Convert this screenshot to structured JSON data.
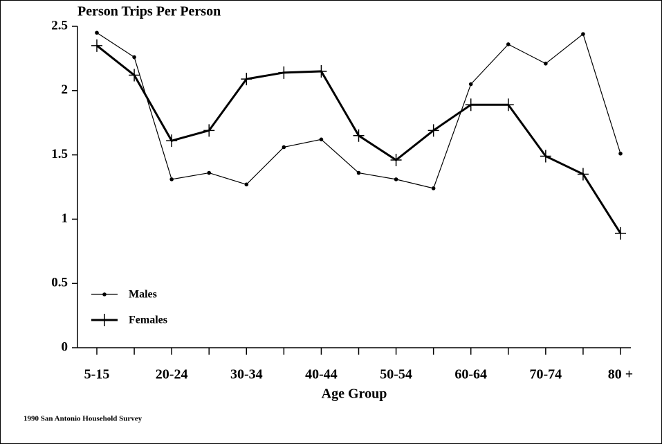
{
  "chart_data": {
    "type": "line",
    "title": "Person Trips Per Person",
    "x_label": "Age Group",
    "source": "1990 San Antonio Household Survey",
    "categories": [
      "5-15",
      null,
      "20-24",
      null,
      "30-34",
      null,
      "40-44",
      null,
      "50-54",
      null,
      "60-64",
      null,
      "70-74",
      null,
      "80 +"
    ],
    "series": [
      {
        "name": "Males",
        "color": "#000000",
        "marker": "dot",
        "width": 1.2,
        "values": [
          2.45,
          2.26,
          1.31,
          1.36,
          1.27,
          1.56,
          1.62,
          1.36,
          1.31,
          1.24,
          2.05,
          2.36,
          2.21,
          2.44,
          1.51
        ]
      },
      {
        "name": "Females",
        "color": "#000000",
        "marker": "plus",
        "width": 3,
        "values": [
          2.35,
          2.12,
          1.61,
          1.69,
          2.09,
          2.14,
          2.15,
          1.65,
          1.46,
          1.69,
          1.89,
          1.89,
          1.49,
          1.35,
          0.89
        ]
      }
    ],
    "ylim": [
      0,
      2.5
    ],
    "yticks": [
      0,
      0.5,
      1,
      1.5,
      2,
      2.5
    ],
    "legend": "lower left",
    "grid": false
  }
}
